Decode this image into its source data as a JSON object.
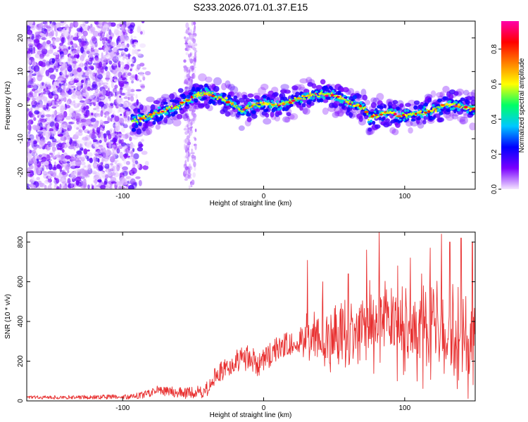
{
  "figure": {
    "title": "S233.2026.071.01.37.E15"
  },
  "chart_data": [
    {
      "type": "heatmap",
      "xlabel": "Height of straight line (km)",
      "ylabel": "Frequency (Hz)",
      "xlim": [
        -168,
        150
      ],
      "ylim": [
        -25,
        25
      ],
      "x_ticks": [
        -100,
        0,
        100
      ],
      "y_ticks": [
        -20,
        -10,
        0,
        10,
        20
      ],
      "colorbar": {
        "label": "Normalized spectral amplitude",
        "range": [
          0,
          0.96
        ],
        "ticks": [
          0.0,
          0.2,
          0.4,
          0.6,
          0.8
        ],
        "colors": [
          "#f4e6ff",
          "#7a00ff",
          "#0000ff",
          "#00c8ff",
          "#00ff66",
          "#ffff00",
          "#ff8000",
          "#ff0000",
          "#ff00aa"
        ]
      },
      "ridge": {
        "x": [
          -93,
          -80,
          -70,
          -60,
          -52,
          -45,
          -38,
          -30,
          -22,
          -15,
          -10,
          -5,
          0,
          5,
          10,
          18,
          25,
          32,
          40,
          48,
          55,
          62,
          68,
          72,
          74,
          80,
          88,
          95,
          100,
          110,
          120,
          130,
          140,
          150
        ],
        "y": [
          -5,
          -3,
          -1.5,
          0,
          2,
          3.5,
          3.2,
          2,
          0.5,
          -1.8,
          -0.5,
          0.3,
          0.5,
          0.3,
          0,
          0.8,
          1.8,
          2.8,
          3.3,
          3,
          2,
          0.5,
          -0.5,
          -1,
          -4,
          -3,
          -2,
          -3,
          -3,
          -2.5,
          -1.5,
          0.5,
          -0.5,
          -1.5
        ]
      }
    },
    {
      "type": "line",
      "xlabel": "Height of straight line (km)",
      "ylabel": "SNR (10 * v/v)",
      "xlim": [
        -168,
        150
      ],
      "ylim": [
        0,
        850
      ],
      "x_ticks": [
        -100,
        0,
        100
      ],
      "y_ticks": [
        0,
        200,
        400,
        600,
        800
      ],
      "series": [
        {
          "color": "#e83030",
          "trend": {
            "x": [
              -168,
              -140,
              -110,
              -95,
              -85,
              -75,
              -65,
              -55,
              -45,
              -40,
              -35,
              -30,
              -25,
              -20,
              -15,
              -10,
              -5,
              0,
              5,
              10,
              15,
              20,
              25,
              28,
              30,
              33,
              36,
              40,
              45,
              50,
              55,
              60,
              65,
              70,
              75,
              80,
              85,
              90,
              95,
              100,
              110,
              120,
              130,
              140,
              150
            ],
            "y": [
              18,
              18,
              20,
              22,
              30,
              55,
              45,
              40,
              45,
              60,
              120,
              150,
              180,
              200,
              210,
              220,
              180,
              200,
              230,
              270,
              280,
              290,
              310,
              290,
              340,
              300,
              280,
              310,
              320,
              310,
              330,
              300,
              340,
              360,
              380,
              370,
              400,
              410,
              380,
              360,
              350,
              370,
              360,
              330,
              300
            ]
          },
          "spread": {
            "x": [
              -168,
              -100,
              -70,
              -45,
              -20,
              0,
              25,
              35,
              60,
              100,
              150
            ],
            "y": [
              8,
              12,
              25,
              35,
              60,
              70,
              60,
              160,
              180,
              230,
              270
            ]
          },
          "peaks": [
            {
              "x": 31,
              "y": 708
            },
            {
              "x": 42,
              "y": 600
            },
            {
              "x": 60,
              "y": 640
            },
            {
              "x": 73,
              "y": 760
            },
            {
              "x": 82,
              "y": 850
            },
            {
              "x": 95,
              "y": 680
            },
            {
              "x": 104,
              "y": 720
            },
            {
              "x": 112,
              "y": 640
            },
            {
              "x": 118,
              "y": 770
            },
            {
              "x": 126,
              "y": 840
            },
            {
              "x": 132,
              "y": 800
            },
            {
              "x": 140,
              "y": 820
            },
            {
              "x": 148,
              "y": 800
            }
          ]
        }
      ]
    }
  ]
}
